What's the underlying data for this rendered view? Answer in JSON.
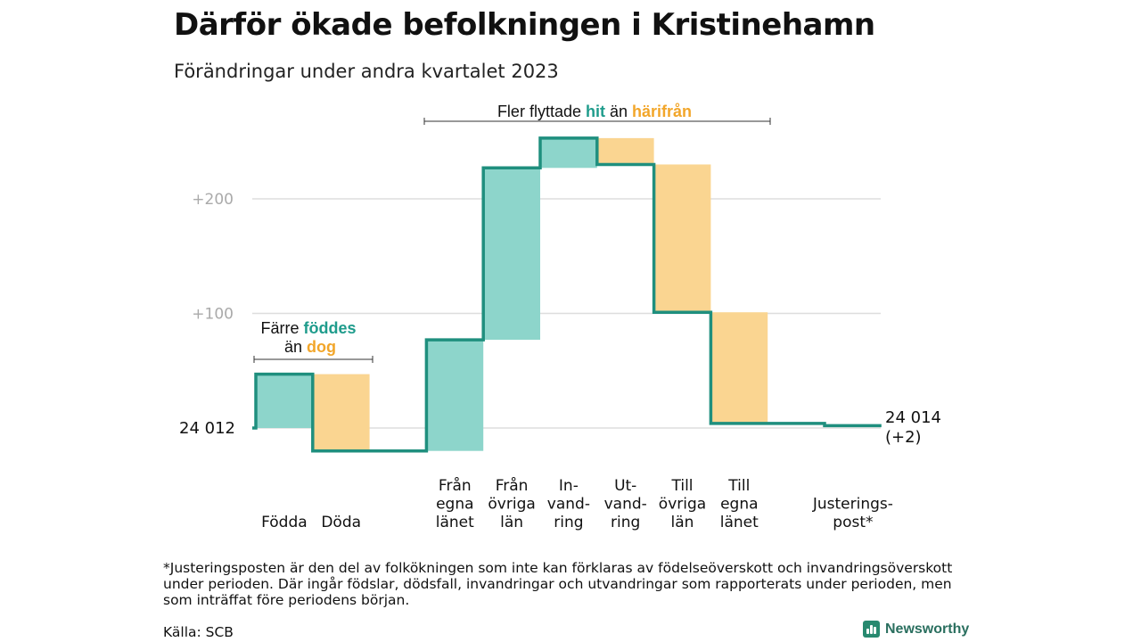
{
  "title": "Därför ökade befolkningen i Kristinehamn",
  "subtitle": "Förändringar under andra kvartalet 2023",
  "chart_data": {
    "type": "waterfall",
    "start_value": 24012,
    "start_label": "24  012",
    "end_label_line1": "24 014",
    "end_label_line2": "(+2)",
    "yticks": [
      {
        "value": 200,
        "label": "+200"
      },
      {
        "value": 100,
        "label": "+100"
      }
    ],
    "steps": [
      {
        "label": [
          "Födda"
        ],
        "change": 47,
        "kind": "in"
      },
      {
        "label": [
          "Döda"
        ],
        "change": -67,
        "kind": "out"
      },
      {
        "label": [],
        "change": 0,
        "kind": "none"
      },
      {
        "label": [
          "Från",
          "egna",
          "länet"
        ],
        "change": 97,
        "kind": "in"
      },
      {
        "label": [
          "Från",
          "övriga",
          "län"
        ],
        "change": 150,
        "kind": "in"
      },
      {
        "label": [
          "In-",
          "vand-",
          "ring"
        ],
        "change": 26,
        "kind": "in"
      },
      {
        "label": [
          "Ut-",
          "vand-",
          "ring"
        ],
        "change": -23,
        "kind": "out"
      },
      {
        "label": [
          "Till",
          "övriga",
          "län"
        ],
        "change": -129,
        "kind": "out"
      },
      {
        "label": [
          "Till",
          "egna",
          "länet"
        ],
        "change": -97,
        "kind": "out"
      },
      {
        "label": [],
        "change": 0,
        "kind": "none"
      },
      {
        "label": [
          "Justerings-",
          "post*"
        ],
        "change": -2,
        "kind": "adjust"
      }
    ],
    "annotations": {
      "births": {
        "line1_a": "Färre ",
        "line1_b": "föddes",
        "line2_a": "än ",
        "line2_b": "dog"
      },
      "migration": {
        "a": "Fler flyttade ",
        "b": "hit",
        "c": " än ",
        "d": "härifrån"
      }
    },
    "colors": {
      "line": "#1f8f7e",
      "in_fill": "#8dd5cb",
      "out_fill": "#fad591",
      "in_text": "#1f9c8c",
      "out_text": "#f2a62a",
      "grid": "#dddddd",
      "tick_text": "#aaaaaa"
    }
  },
  "footnote": "*Justeringsposten är den del av folkökningen som inte kan förklaras av födelseöverskott och invandringsöverskott under perioden. Där ingår födslar, dödsfall, invandringar och utvandringar som rapporterats under perioden, men som inträffat före periodens början.",
  "source": "Källa: SCB",
  "brand": {
    "name": "Newsworthy",
    "icon": "newsworthy-logo-icon"
  }
}
